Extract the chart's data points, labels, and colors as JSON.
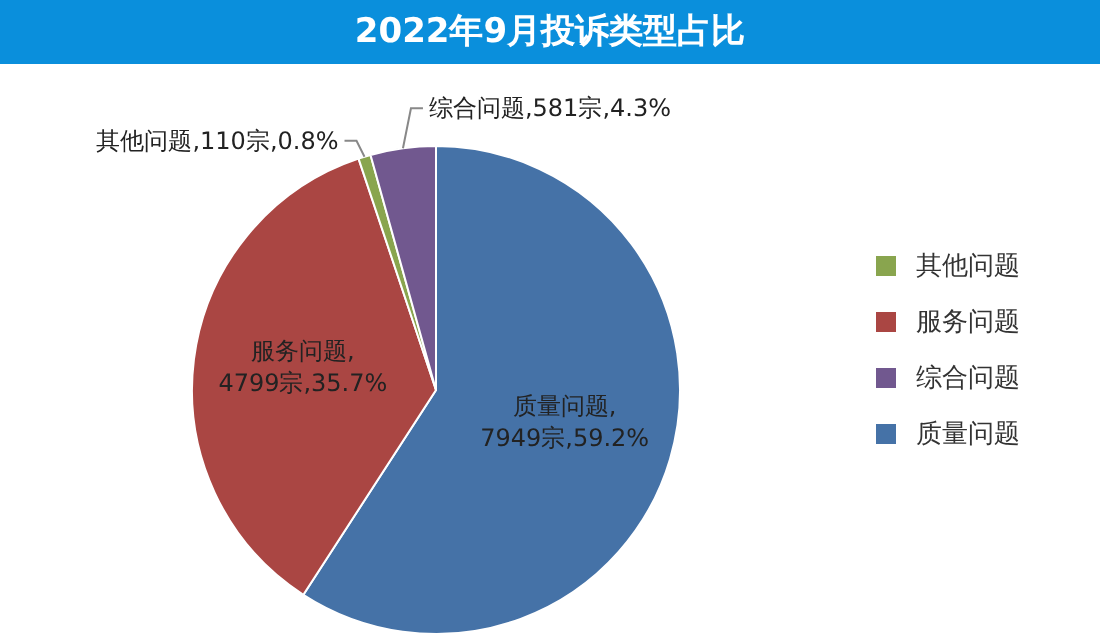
{
  "chart_data": {
    "type": "pie",
    "title": "2022年9月投诉类型占比",
    "categories": [
      "质量问题",
      "服务问题",
      "其他问题",
      "综合问题"
    ],
    "values": [
      7949,
      4799,
      110,
      581
    ],
    "colors": [
      "#4572a7",
      "#aa4643",
      "#89a54e",
      "#71588f"
    ],
    "value_labels": [
      "质量问题,7949宗,59.2%",
      "服务问题,4799宗,35.7%",
      "其他问题,110宗,0.8%",
      "综合问题,581宗,4.3%"
    ],
    "legend": "right"
  }
}
